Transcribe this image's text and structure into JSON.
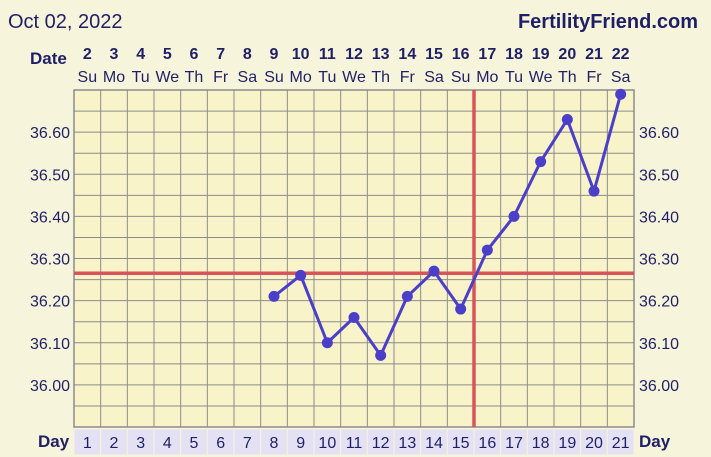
{
  "header": {
    "date_title": "Oct 02, 2022",
    "brand": "FertilityFriend.com"
  },
  "labels": {
    "date_row": "Date",
    "day_row": "Day"
  },
  "colors": {
    "background": "#f7f4dc",
    "plot_background": "#f8f3c8",
    "grid": "#8c8c8c",
    "line": "#4b3fc9",
    "coverline": "#d9545a",
    "text": "#1f1f66"
  },
  "chart_data": {
    "type": "line",
    "cycle_days": [
      1,
      2,
      3,
      4,
      5,
      6,
      7,
      8,
      9,
      10,
      11,
      12,
      13,
      14,
      15,
      16,
      17,
      18,
      19,
      20,
      21
    ],
    "dates": [
      2,
      3,
      4,
      5,
      6,
      7,
      8,
      9,
      10,
      11,
      12,
      13,
      14,
      15,
      16,
      17,
      18,
      19,
      20,
      21,
      22
    ],
    "weekdays": [
      "Su",
      "Mo",
      "Tu",
      "We",
      "Th",
      "Fr",
      "Sa",
      "Su",
      "Mo",
      "Tu",
      "We",
      "Th",
      "Fr",
      "Sa",
      "Su",
      "Mo",
      "Tu",
      "We",
      "Th",
      "Fr",
      "Sa"
    ],
    "y_ticks": [
      "36.00",
      "36.10",
      "36.20",
      "36.30",
      "36.40",
      "36.50",
      "36.60"
    ],
    "ylim": [
      35.9,
      36.7
    ],
    "series": [
      {
        "x": [
          8,
          9,
          10,
          11,
          12,
          13,
          14,
          15,
          16,
          17,
          18,
          19,
          20,
          21
        ],
        "values": [
          36.21,
          36.26,
          36.1,
          36.16,
          36.07,
          36.21,
          36.27,
          36.18,
          36.32,
          36.4,
          36.53,
          36.63,
          36.46,
          36.69
        ]
      }
    ],
    "coverline": 36.265,
    "ovulation_day": 15,
    "grid": true
  }
}
